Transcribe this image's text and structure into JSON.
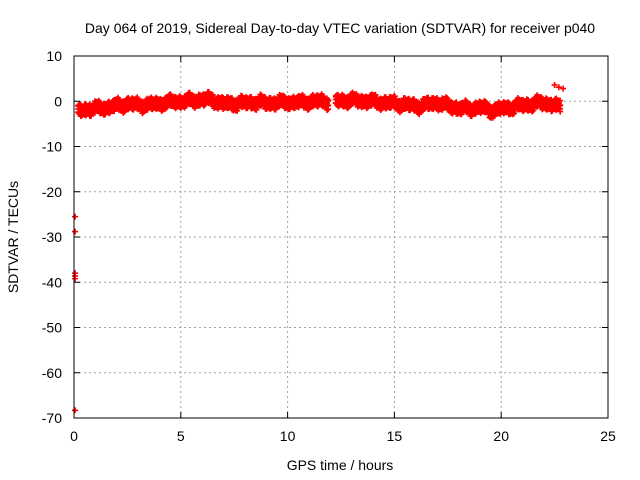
{
  "chart_data": {
    "type": "scatter",
    "title": "Day 064 of 2019, Sidereal Day-to-day VTEC variation (SDTVAR) for receiver p040",
    "xlabel": "GPS time / hours",
    "ylabel": "SDTVAR / TECUs",
    "xlim": [
      0,
      25
    ],
    "ylim": [
      -70,
      10
    ],
    "grid": true,
    "x_ticks": [
      0,
      5,
      10,
      15,
      20,
      25
    ],
    "y_ticks": [
      -70,
      -60,
      -50,
      -40,
      -30,
      -20,
      -10,
      0,
      10
    ],
    "x_tick_labels": [
      "0",
      "5",
      "10",
      "15",
      "20",
      "25"
    ],
    "y_tick_labels": [
      "-70",
      "-60",
      "-50",
      "-40",
      "-30",
      "-20",
      "-10",
      "0",
      "10"
    ],
    "marker": "plus",
    "color": "#ff0000",
    "series": [
      {
        "name": "SDTVAR",
        "band": [
          [
            0.2,
            -2.2
          ],
          [
            0.5,
            -1.8
          ],
          [
            1.0,
            -1.6
          ],
          [
            1.5,
            -1.4
          ],
          [
            2.0,
            -1.0
          ],
          [
            2.5,
            -0.6
          ],
          [
            3.0,
            -0.8
          ],
          [
            3.5,
            -0.8
          ],
          [
            4.0,
            -0.5
          ],
          [
            4.5,
            -0.2
          ],
          [
            5.0,
            0.0
          ],
          [
            5.5,
            0.1
          ],
          [
            6.0,
            0.4
          ],
          [
            6.5,
            0.3
          ],
          [
            7.0,
            -0.6
          ],
          [
            7.5,
            -0.5
          ],
          [
            8.0,
            -0.4
          ],
          [
            8.5,
            -0.2
          ],
          [
            9.0,
            -0.4
          ],
          [
            9.5,
            -0.3
          ],
          [
            10.0,
            -0.2
          ],
          [
            10.5,
            -0.3
          ],
          [
            11.0,
            -0.1
          ],
          [
            11.5,
            0.0
          ],
          [
            11.9,
            -0.1
          ],
          [
            12.3,
            0.1
          ],
          [
            13.0,
            0.2
          ],
          [
            13.5,
            0.1
          ],
          [
            14.0,
            -0.1
          ],
          [
            14.5,
            -0.3
          ],
          [
            15.0,
            -0.5
          ],
          [
            15.5,
            -0.7
          ],
          [
            16.0,
            -1.1
          ],
          [
            16.5,
            -0.8
          ],
          [
            17.0,
            -0.3
          ],
          [
            17.5,
            -1.0
          ],
          [
            18.0,
            -1.5
          ],
          [
            18.5,
            -1.7
          ],
          [
            19.0,
            -1.3
          ],
          [
            19.5,
            -2.0
          ],
          [
            20.0,
            -1.7
          ],
          [
            20.5,
            -1.3
          ],
          [
            21.0,
            -0.9
          ],
          [
            21.5,
            -0.6
          ],
          [
            22.0,
            -0.3
          ],
          [
            22.4,
            -0.8
          ],
          [
            22.8,
            -1.4
          ]
        ],
        "band_width": 2.6,
        "isolated_points": [
          [
            22.5,
            3.6
          ],
          [
            22.7,
            3.1
          ],
          [
            22.9,
            2.8
          ],
          [
            19.2,
            -1.0
          ],
          [
            19.4,
            -2.8
          ],
          [
            19.6,
            -3.2
          ],
          [
            19.8,
            -1.2
          ],
          [
            0.05,
            -25.5
          ],
          [
            0.05,
            -28.8
          ],
          [
            0.05,
            -38.0
          ],
          [
            0.05,
            -38.6
          ],
          [
            0.05,
            -39.2
          ],
          [
            0.05,
            -68.3
          ]
        ]
      }
    ]
  }
}
